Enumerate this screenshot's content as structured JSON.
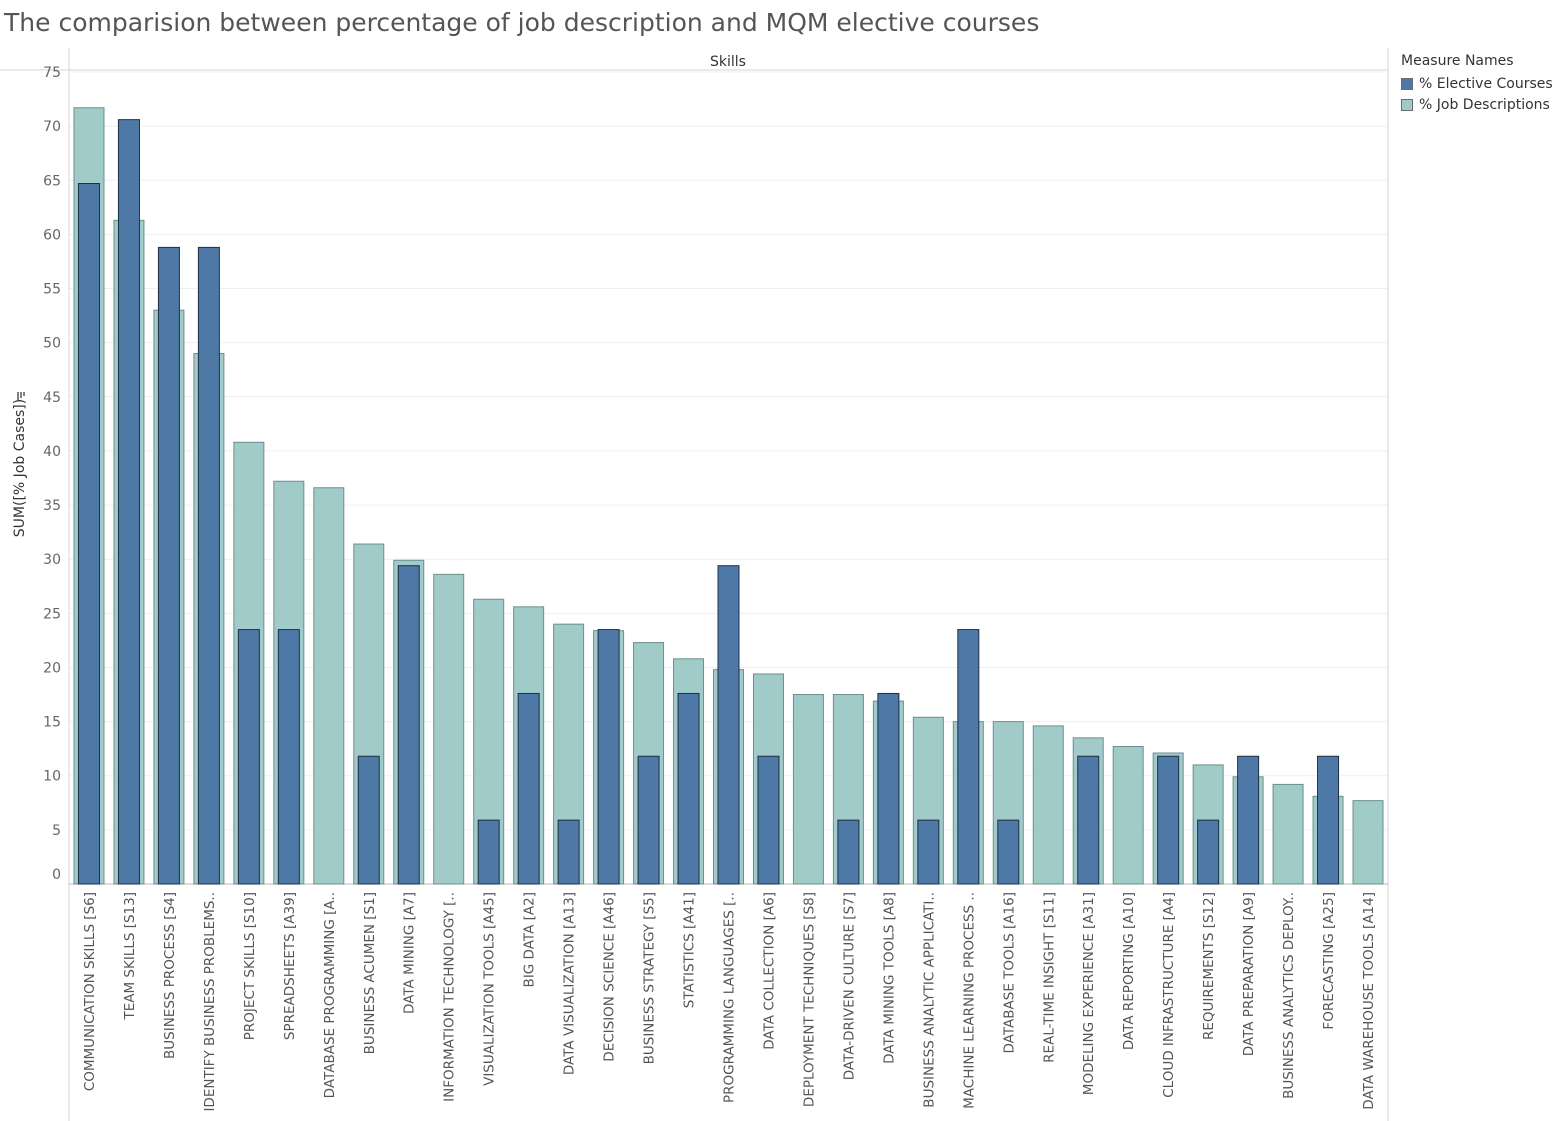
{
  "title": "The comparision between percentage of job description and MQM elective courses",
  "legend": {
    "title": "Measure Names",
    "entries": [
      {
        "name": "% Elective Courses",
        "color": "#4e79a7"
      },
      {
        "name": "% Job Descriptions",
        "color": "#a0cbc8"
      }
    ]
  },
  "chart_data": {
    "type": "bar",
    "title": "The comparision between percentage of job description and MQM elective courses",
    "xlabel": "Skills",
    "ylabel": "SUM([% Job Cases])",
    "ylim": [
      0,
      75
    ],
    "yticks": [
      0,
      5,
      10,
      15,
      20,
      25,
      30,
      35,
      40,
      45,
      50,
      55,
      60,
      65,
      70,
      75
    ],
    "grid": true,
    "legend_position": "top-right",
    "categories": [
      "COMMUNICATION SKILLS [S6]",
      "TEAM SKILLS [S13]",
      "BUSINESS PROCESS [S4]",
      "IDENTIFY BUSINESS PROBLEMS..",
      "PROJECT SKILLS [S10]",
      "SPREADSHEETS [A39]",
      "DATABASE PROGRAMMING [A..",
      "BUSINESS ACUMEN [S1]",
      "DATA MINING [A7]",
      "INFORMATION TECHNOLOGY [..",
      "VISUALIZATION TOOLS [A45]",
      "BIG DATA [A2]",
      "DATA VISUALIZATION [A13]",
      "DECISION SCIENCE [A46]",
      "BUSINESS STRATEGY [S5]",
      "STATISTICS [A41]",
      "PROGRAMMING LANGUAGES [..",
      "DATA COLLECTION [A6]",
      "DEPLOYMENT TECHNIQUES [S8]",
      "DATA-DRIVEN CULTURE [S7]",
      "DATA MINING TOOLS [A8]",
      "BUSINESS ANALYTIC APPLICATI..",
      "MACHINE LEARNING PROCESS ..",
      "DATABASE TOOLS [A16]",
      "REAL-TIME INSIGHT [S11]",
      "MODELING EXPERIENCE [A31]",
      "DATA REPORTING [A10]",
      "CLOUD INFRASTRUCTURE [A4]",
      "REQUIREMENTS [S12]",
      "DATA PREPARATION [A9]",
      "BUSINESS ANALYTICS DEPLOY..",
      "FORECASTING [A25]",
      "DATA WAREHOUSE TOOLS [A14]"
    ],
    "series": [
      {
        "name": "% Job Descriptions",
        "values": [
          71.7,
          61.3,
          53.0,
          49.0,
          40.8,
          37.2,
          36.6,
          31.4,
          29.9,
          28.6,
          26.3,
          25.6,
          24.0,
          23.4,
          22.3,
          20.8,
          19.8,
          19.4,
          17.5,
          17.5,
          16.9,
          15.4,
          15.0,
          15.0,
          14.6,
          13.5,
          12.7,
          12.1,
          11.0,
          9.9,
          9.2,
          8.1,
          7.7
        ]
      },
      {
        "name": "% Elective Courses",
        "values": [
          64.7,
          70.6,
          58.8,
          58.8,
          23.5,
          23.5,
          0,
          11.8,
          29.4,
          0,
          5.9,
          17.6,
          5.9,
          23.5,
          11.8,
          17.6,
          29.4,
          11.8,
          0,
          5.9,
          17.6,
          5.9,
          23.5,
          5.9,
          0,
          11.8,
          0,
          11.8,
          5.9,
          11.8,
          0,
          11.8,
          0
        ]
      }
    ]
  }
}
